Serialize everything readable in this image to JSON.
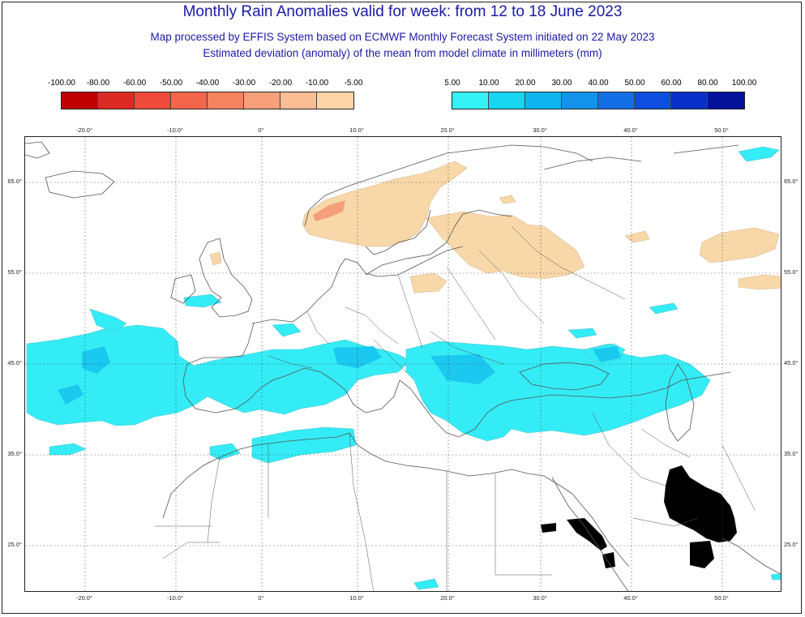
{
  "header": {
    "title": "Monthly Rain Anomalies valid for week: from 12 to 18 June 2023",
    "subtitle1": "Map processed by EFFIS System based on ECMWF Monthly Forecast System initiated on 22 May 2023",
    "subtitle2": "Estimated deviation (anomaly) of the mean from model climate in millimeters (mm)"
  },
  "legend_negative": {
    "labels": [
      "-100.00",
      "-80.00",
      "-60.00",
      "-50.00",
      "-40.00",
      "-30.00",
      "-20.00",
      "-10.00",
      "-5.00"
    ],
    "colors": [
      "#c00000",
      "#dd2a22",
      "#f04a3a",
      "#f4664a",
      "#f5835f",
      "#f8a07a",
      "#fbbd94",
      "#fdd6a8"
    ]
  },
  "legend_positive": {
    "labels": [
      "5.00",
      "10.00",
      "20.00",
      "30.00",
      "40.00",
      "50.00",
      "60.00",
      "80.00",
      "100.00"
    ],
    "colors": [
      "#35f2f7",
      "#17d6f2",
      "#10b4ee",
      "#1392ea",
      "#126fe6",
      "#0d4ee0",
      "#0830c8",
      "#04129a"
    ]
  },
  "map": {
    "lon_ticks": [
      "-20.0°",
      "-10.0°",
      "0°",
      "10.0°",
      "20.0°",
      "30.0°",
      "40.0°",
      "50.0°"
    ],
    "lat_ticks": [
      "65.0°",
      "55.0°",
      "45.0°",
      "35.0°",
      "25.0°"
    ],
    "colors": {
      "land_border": "#555555",
      "wet": "#33ecf5",
      "wet_mid": "#1bc8ef",
      "dry": "#f8d7a8",
      "dry_strong": "#f3a07a",
      "nodata": "#000000",
      "grid": "#444444"
    }
  }
}
